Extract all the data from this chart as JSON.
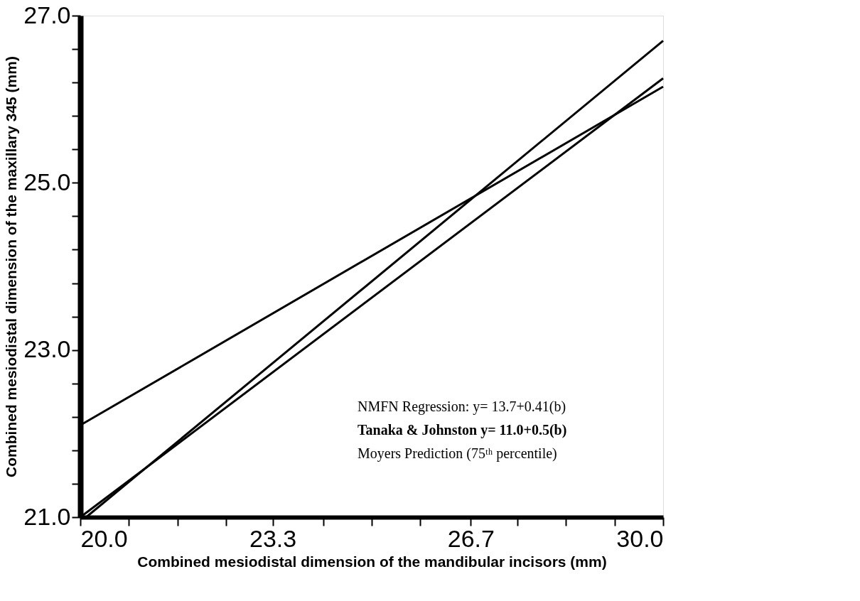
{
  "chart_data": {
    "type": "line",
    "xlabel": "Combined mesiodistal dimension of the mandibular incisors (mm)",
    "ylabel": "Combined mesiodistal dimension of the maxillary 345 (mm)",
    "x": [
      20.0,
      30.0
    ],
    "series": [
      {
        "color": "#000000",
        "values": [
          22.1,
          26.15
        ]
      },
      {
        "color": "#000000",
        "values": [
          21.0,
          26.25
        ]
      },
      {
        "color": "#000000",
        "x": [
          20.1,
          30.0
        ],
        "values": [
          21.0,
          26.7
        ]
      }
    ],
    "xlim": [
      20.0,
      30.0
    ],
    "xticks": [
      {
        "value": 20.0,
        "label": "20.0"
      },
      {
        "value": 20.83,
        "label": null
      },
      {
        "value": 21.67,
        "label": null
      },
      {
        "value": 22.5,
        "label": null
      },
      23.3,
      {
        "value": 24.17,
        "label": null
      },
      {
        "value": 25.0,
        "label": null
      },
      {
        "value": 25.83,
        "label": null
      },
      26.7,
      {
        "value": 27.5,
        "label": null
      },
      {
        "value": 28.33,
        "label": null
      },
      {
        "value": 29.17,
        "label": null
      },
      {
        "value": 30.0,
        "label": "30.0"
      }
    ],
    "ylim": [
      21.0,
      27.0
    ],
    "yticks": [
      {
        "value": 21.0,
        "label": "21.0"
      },
      {
        "value": 21.4,
        "label": null
      },
      {
        "value": 21.8,
        "label": null
      },
      {
        "value": 22.2,
        "label": null
      },
      {
        "value": 22.6,
        "label": null
      },
      {
        "value": 23.0,
        "label": "23.0"
      },
      {
        "value": 23.4,
        "label": null
      },
      {
        "value": 23.8,
        "label": null
      },
      {
        "value": 24.2,
        "label": null
      },
      {
        "value": 24.6,
        "label": null
      },
      {
        "value": 25.0,
        "label": "25.0"
      },
      {
        "value": 25.4,
        "label": null
      },
      {
        "value": 25.8,
        "label": null
      },
      {
        "value": 26.2,
        "label": null
      },
      {
        "value": 26.6,
        "label": null
      },
      {
        "value": 27.0,
        "label": "27.0"
      }
    ],
    "grid": false,
    "marker": "none",
    "line_style": "solid",
    "annotations": [
      "NMFN Regression: y= 13.7+0.41(b)",
      "Tanaka & Johnston y= 11.0+0.5(b)",
      "Moyers Prediction (75ᵗʰ percentile)"
    ]
  }
}
